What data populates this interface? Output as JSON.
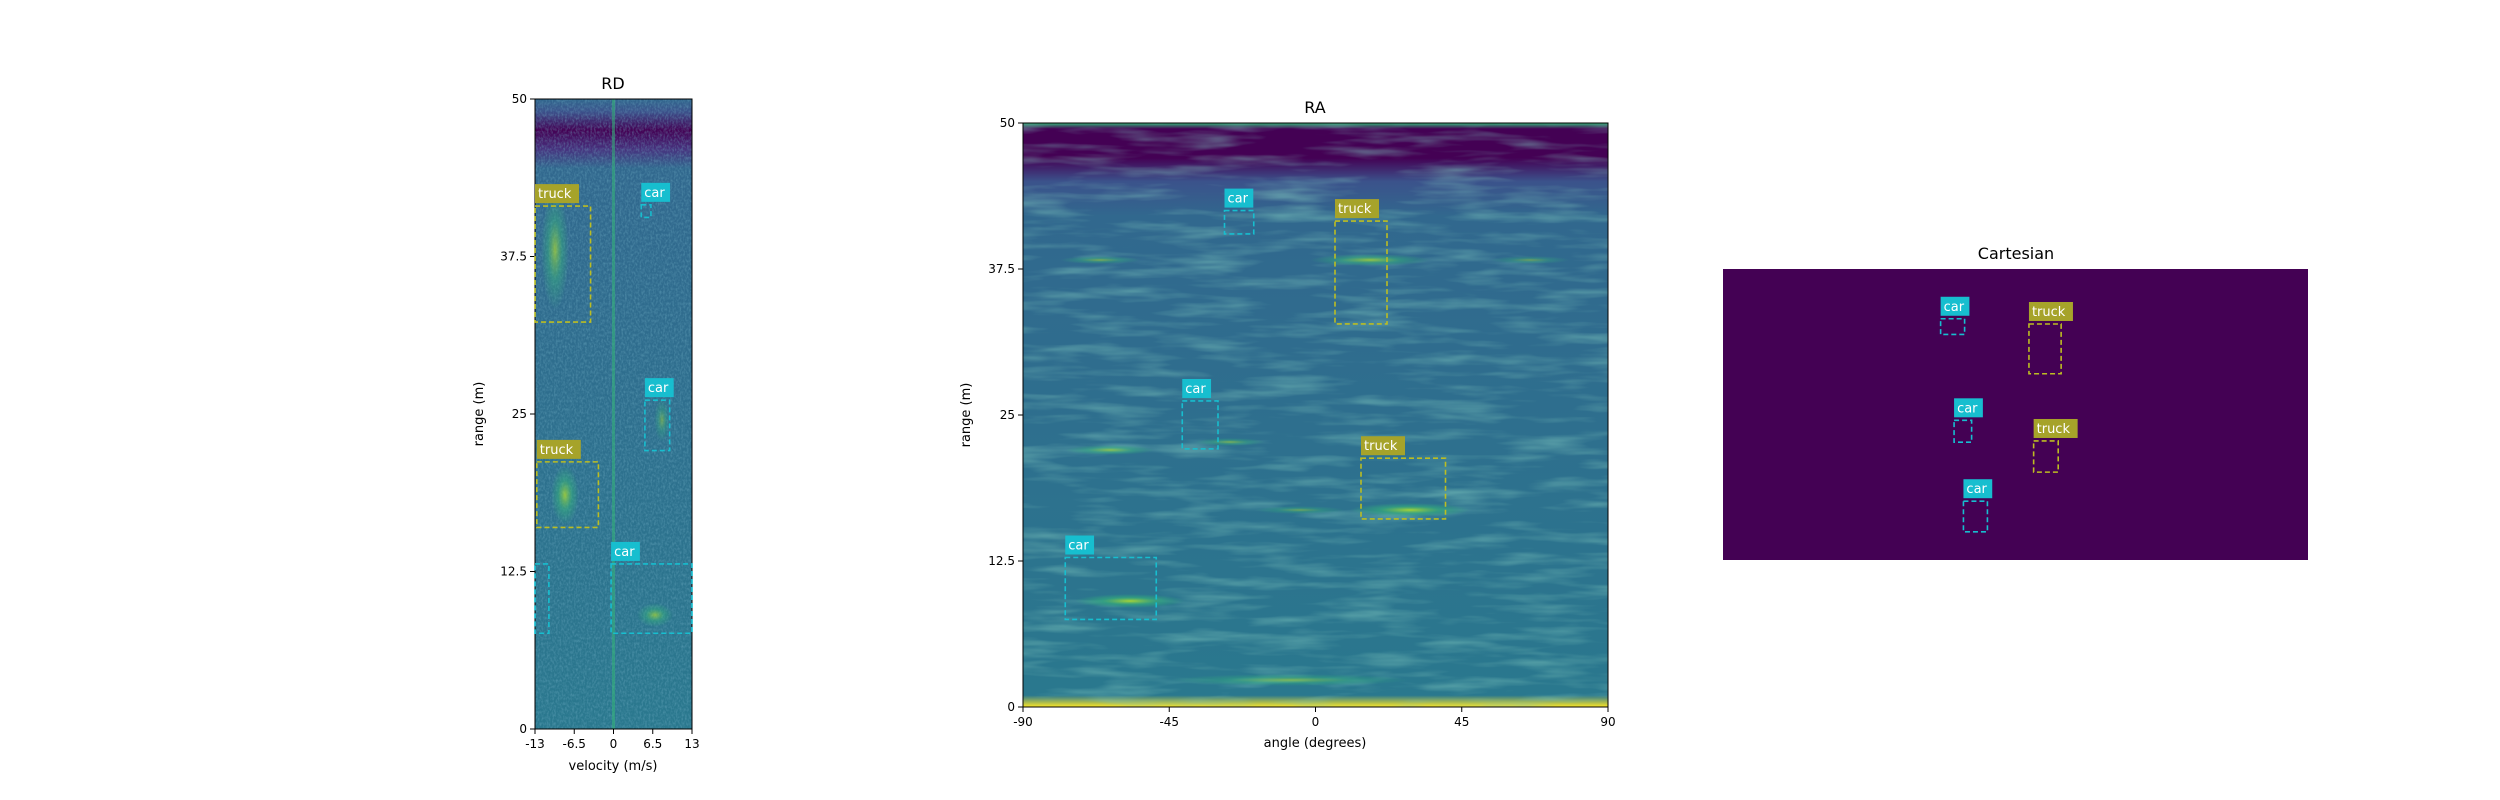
{
  "colors": {
    "viridis_dark": "#440154",
    "viridis_mid": "#31688e",
    "viridis_teal": "#21918c",
    "viridis_green": "#35b779",
    "viridis_yellow": "#fde725",
    "car_box": "#17becf",
    "truck_box": "#bcbd22",
    "car_label_bg": "#17becf",
    "truck_label_bg": "#a6a32a",
    "label_text": "#ffffff"
  },
  "chart_data": [
    {
      "type": "heatmap",
      "name": "rd-panel",
      "title": "RD",
      "xlabel": "velocity (m/s)",
      "ylabel": "range (m)",
      "xlim": [
        -13,
        13
      ],
      "ylim": [
        0,
        50
      ],
      "xticks": [
        -13,
        -6.5,
        0,
        6.5,
        13
      ],
      "xtick_labels": [
        "-13",
        "-6.5",
        "0",
        "6.5",
        "13"
      ],
      "yticks": [
        0,
        12.5,
        25,
        37.5,
        50
      ],
      "ytick_labels": [
        "0",
        "12.5",
        "25",
        "37.5",
        "50"
      ],
      "boxes": [
        {
          "label": "truck",
          "x0": -13,
          "x1": -3.8,
          "y0": 32.3,
          "y1": 41.5
        },
        {
          "label": "car",
          "x0": 4.6,
          "x1": 6.2,
          "y0": 40.6,
          "y1": 41.6
        },
        {
          "label": "car",
          "x0": 5.2,
          "x1": 9.3,
          "y0": 22.1,
          "y1": 26.1
        },
        {
          "label": "truck",
          "x0": -12.7,
          "x1": -2.5,
          "y0": 16.0,
          "y1": 21.2
        },
        {
          "label": "car",
          "x0": -0.4,
          "x1": 13,
          "y0": 7.6,
          "y1": 13.1
        },
        {
          "label": "",
          "x0": -13,
          "x1": -10.7,
          "y0": 7.6,
          "y1": 13.1
        }
      ]
    },
    {
      "type": "heatmap",
      "name": "ra-panel",
      "title": "RA",
      "xlabel": "angle (degrees)",
      "ylabel": "range (m)",
      "xlim": [
        -90,
        90
      ],
      "ylim": [
        0,
        50
      ],
      "xticks": [
        -90,
        -45,
        0,
        45,
        90
      ],
      "xtick_labels": [
        "-90",
        "-45",
        "0",
        "45",
        "90"
      ],
      "yticks": [
        0,
        12.5,
        25,
        37.5,
        50
      ],
      "ytick_labels": [
        "0",
        "12.5",
        "25",
        "37.5",
        "50"
      ],
      "boxes": [
        {
          "label": "car",
          "x0": -28,
          "x1": -19,
          "y0": 40.5,
          "y1": 42.5
        },
        {
          "label": "truck",
          "x0": 6,
          "x1": 22,
          "y0": 32.8,
          "y1": 41.6
        },
        {
          "label": "car",
          "x0": -41,
          "x1": -30,
          "y0": 22.1,
          "y1": 26.2
        },
        {
          "label": "truck",
          "x0": 14,
          "x1": 40,
          "y0": 16.1,
          "y1": 21.3
        },
        {
          "label": "car",
          "x0": -77,
          "x1": -49,
          "y0": 7.5,
          "y1": 12.8
        }
      ]
    },
    {
      "type": "heatmap",
      "name": "cartesian-panel",
      "title": "Cartesian",
      "xlim": [
        0,
        1
      ],
      "ylim": [
        0,
        1
      ],
      "boxes": [
        {
          "label": "car",
          "x0": 0.372,
          "x1": 0.413,
          "y0": 0.775,
          "y1": 0.829
        },
        {
          "label": "truck",
          "x0": 0.523,
          "x1": 0.578,
          "y0": 0.64,
          "y1": 0.811
        },
        {
          "label": "car",
          "x0": 0.395,
          "x1": 0.425,
          "y0": 0.405,
          "y1": 0.48
        },
        {
          "label": "truck",
          "x0": 0.531,
          "x1": 0.573,
          "y0": 0.302,
          "y1": 0.409
        },
        {
          "label": "car",
          "x0": 0.411,
          "x1": 0.452,
          "y0": 0.097,
          "y1": 0.202
        }
      ]
    }
  ]
}
